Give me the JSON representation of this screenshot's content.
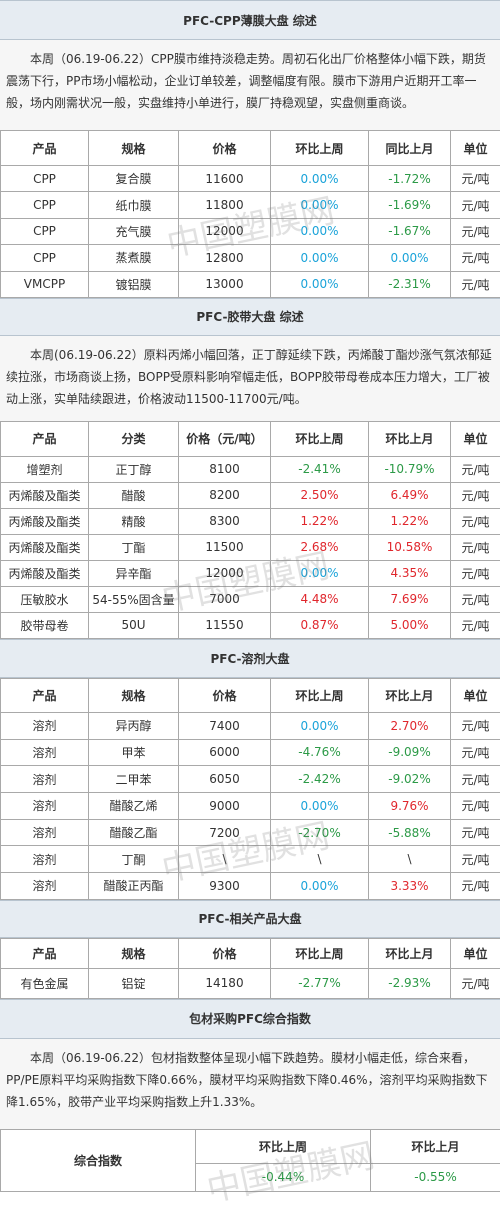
{
  "sections": [
    {
      "title": "PFC-CPP薄膜大盘 综述",
      "paragraph": "本周（06.19-06.22）CPP膜市维持淡稳走势。周初石化出厂价格整体小幅下跌，期货震荡下行，PP市场小幅松动，企业订单较差，调整幅度有限。膜市下游用户近期开工率一般，场内刚需状况一般，实盘维持小单进行，膜厂持稳观望，实盘侧重商谈。",
      "table": {
        "header": [
          "产品",
          "规格",
          "价格",
          "环比上周",
          "同比上月",
          "单位"
        ],
        "rows": [
          [
            "CPP",
            "复合膜",
            "11600",
            "0.00%",
            "-1.72%",
            "元/吨"
          ],
          [
            "CPP",
            "纸巾膜",
            "11800",
            "0.00%",
            "-1.69%",
            "元/吨"
          ],
          [
            "CPP",
            "充气膜",
            "12000",
            "0.00%",
            "-1.67%",
            "元/吨"
          ],
          [
            "CPP",
            "蒸煮膜",
            "12800",
            "0.00%",
            "0.00%",
            "元/吨"
          ],
          [
            "VMCPP",
            "镀铝膜",
            "13000",
            "0.00%",
            "-2.31%",
            "元/吨"
          ]
        ]
      }
    },
    {
      "title": "PFC-胶带大盘 综述",
      "paragraph": "本周(06.19-06.22）原料丙烯小幅回落，正丁醇延续下跌，丙烯酸丁酯炒涨气氛浓郁延续拉涨，市场商谈上扬，BOPP受原料影响窄幅走低，BOPP胶带母卷成本压力增大，工厂被动上涨，实单陆续跟进，价格波动11500-11700元/吨。",
      "table": {
        "header": [
          "产品",
          "分类",
          "价格（元/吨）",
          "环比上周",
          "环比上月",
          "单位"
        ],
        "rows": [
          [
            "增塑剂",
            "正丁醇",
            "8100",
            "-2.41%",
            "-10.79%",
            "元/吨"
          ],
          [
            "丙烯酸及酯类",
            "醋酸",
            "8200",
            "2.50%",
            "6.49%",
            "元/吨"
          ],
          [
            "丙烯酸及酯类",
            "精酸",
            "8300",
            "1.22%",
            "1.22%",
            "元/吨"
          ],
          [
            "丙烯酸及酯类",
            "丁酯",
            "11500",
            "2.68%",
            "10.58%",
            "元/吨"
          ],
          [
            "丙烯酸及酯类",
            "异辛酯",
            "12000",
            "0.00%",
            "4.35%",
            "元/吨"
          ],
          [
            "压敏胶水",
            "54-55%固含量",
            "7000",
            "4.48%",
            "7.69%",
            "元/吨"
          ],
          [
            "胶带母卷",
            "50U",
            "11550",
            "0.87%",
            "5.00%",
            "元/吨"
          ]
        ]
      }
    },
    {
      "title": "PFC-溶剂大盘",
      "table": {
        "header": [
          "产品",
          "规格",
          "价格",
          "环比上周",
          "环比上月",
          "单位"
        ],
        "rows": [
          [
            "溶剂",
            "异丙醇",
            "7400",
            "0.00%",
            "2.70%",
            "元/吨"
          ],
          [
            "溶剂",
            "甲苯",
            "6000",
            "-4.76%",
            "-9.09%",
            "元/吨"
          ],
          [
            "溶剂",
            "二甲苯",
            "6050",
            "-2.42%",
            "-9.02%",
            "元/吨"
          ],
          [
            "溶剂",
            "醋酸乙烯",
            "9000",
            "0.00%",
            "9.76%",
            "元/吨"
          ],
          [
            "溶剂",
            "醋酸乙酯",
            "7200",
            "-2.70%",
            "-5.88%",
            "元/吨"
          ],
          [
            "溶剂",
            "丁酮",
            "\\",
            "\\",
            "\\",
            "元/吨"
          ],
          [
            "溶剂",
            "醋酸正丙酯",
            "9300",
            "0.00%",
            "3.33%",
            "元/吨"
          ]
        ]
      }
    },
    {
      "title": "PFC-相关产品大盘",
      "table": {
        "header": [
          "产品",
          "规格",
          "价格",
          "环比上周",
          "环比上月",
          "单位"
        ],
        "rows": [
          [
            "有色金属",
            "铝锭",
            "14180",
            "-2.77%",
            "-2.93%",
            "元/吨"
          ]
        ]
      }
    },
    {
      "title": "包材采购PFC综合指数",
      "paragraph": "本周（06.19-06.22）包材指数整体呈现小幅下跌趋势。膜材小幅走低，综合来看，PP/PE原料平均采购指数下降0.66%，膜材平均采购指数下降0.46%，溶剂平均采购指数下降1.65%，胶带产业平均采购指数上升1.33%。",
      "index_table": {
        "label": "综合指数",
        "header": [
          "环比上周",
          "环比上月"
        ],
        "values": [
          "-0.44%",
          "-0.55%"
        ]
      }
    }
  ],
  "watermark": "中国塑膜网"
}
